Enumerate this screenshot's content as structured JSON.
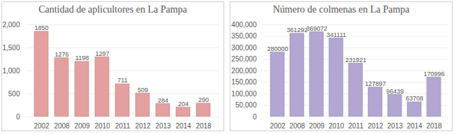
{
  "chart_data": [
    {
      "type": "bar",
      "title": "Cantidad de aplicultores en La Pampa",
      "categories": [
        "2002",
        "2008",
        "2009",
        "2010",
        "2011",
        "2012",
        "2013",
        "2014",
        "2018"
      ],
      "values": [
        1850,
        1276,
        1198,
        1297,
        711,
        509,
        284,
        204,
        290
      ],
      "color": "#e4a0a0",
      "ylim": [
        0,
        2000
      ],
      "yticks": [
        0,
        500,
        1000,
        1500,
        2000
      ],
      "grid": true,
      "data_labels": true
    },
    {
      "type": "bar",
      "title": "Número de colmenas en La Pampa",
      "categories": [
        "2002",
        "2008",
        "2009",
        "2010",
        "2011",
        "2012",
        "2013",
        "2014",
        "2018"
      ],
      "values": [
        280000,
        361292,
        369072,
        341111,
        231921,
        127897,
        96439,
        63708,
        170996
      ],
      "color": "#b4a6d2",
      "ylim": [
        0,
        400000
      ],
      "yticks": [
        0,
        50000,
        100000,
        150000,
        200000,
        250000,
        300000,
        350000,
        400000
      ],
      "grid": true,
      "data_labels": true
    }
  ]
}
